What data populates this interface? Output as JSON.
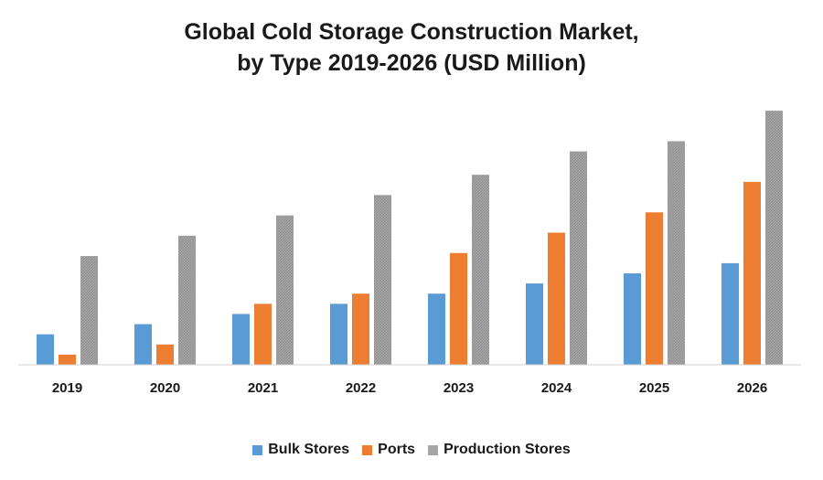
{
  "chart_data": {
    "type": "bar",
    "title_line1": "Global Cold Storage Construction Market,",
    "title_line2": "by Type 2019-2026 (USD Million)",
    "categories": [
      "2019",
      "2020",
      "2021",
      "2022",
      "2023",
      "2024",
      "2025",
      "2026"
    ],
    "series": [
      {
        "name": "Bulk Stores",
        "color": "#5b9bd5",
        "values": [
          30,
          40,
          50,
          60,
          70,
          80,
          90,
          100
        ]
      },
      {
        "name": "Ports",
        "color": "#ed7d31",
        "values": [
          10,
          20,
          60,
          70,
          110,
          130,
          150,
          180
        ]
      },
      {
        "name": "Production Stores",
        "color": "#a5a5a5",
        "values": [
          107,
          127,
          147,
          167,
          187,
          210,
          220,
          250
        ]
      }
    ],
    "ylim": [
      0,
      260
    ],
    "grid": false,
    "legend_position": "bottom"
  }
}
